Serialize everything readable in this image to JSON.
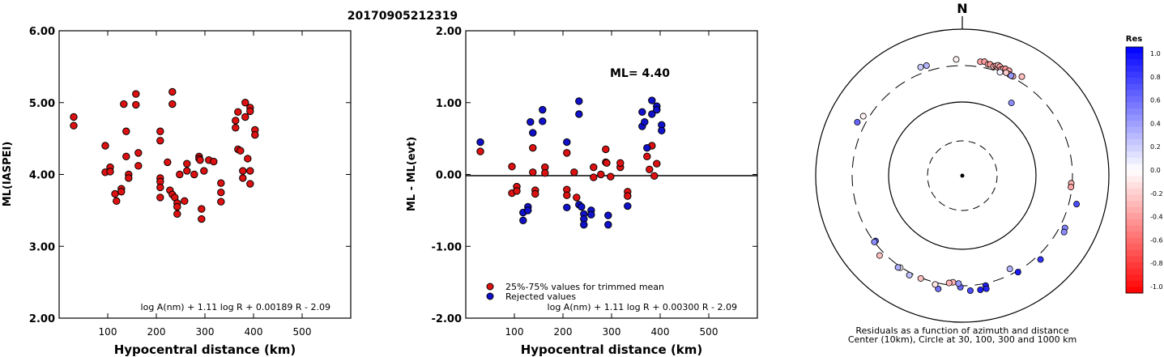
{
  "title": "20170905212319",
  "colors": {
    "trimmed": "#dd1111",
    "rejected": "#1111cc",
    "edge": "#000000"
  },
  "chart_data": [
    {
      "type": "scatter",
      "ylabel": "ML(IASPEI)",
      "xlabel": "Hypocentral distance (km)",
      "xlim": [
        0,
        600
      ],
      "ylim": [
        2.0,
        6.0
      ],
      "xticks": [
        100,
        200,
        300,
        400,
        500
      ],
      "xtick_labels": [
        "100",
        "200",
        "300",
        "400",
        "500"
      ],
      "yticks": [
        2.0,
        3.0,
        4.0,
        5.0,
        6.0
      ],
      "ytick_labels": [
        "2.00",
        "3.00",
        "4.00",
        "5.00",
        "6.00"
      ],
      "formula": "log A(nm) + 1.11 log R + 0.00189 R - 2.09",
      "series": [
        {
          "color": "#dd1111",
          "points": [
            [
              30,
              4.8
            ],
            [
              30,
              4.68
            ],
            [
              95,
              4.4
            ],
            [
              95,
              4.03
            ],
            [
              105,
              4.1
            ],
            [
              105,
              4.04
            ],
            [
              115,
              3.73
            ],
            [
              118,
              3.63
            ],
            [
              128,
              3.8
            ],
            [
              128,
              3.76
            ],
            [
              133,
              4.98
            ],
            [
              138,
              4.6
            ],
            [
              138,
              4.25
            ],
            [
              143,
              4.0
            ],
            [
              143,
              3.95
            ],
            [
              158,
              5.12
            ],
            [
              158,
              4.97
            ],
            [
              163,
              4.3
            ],
            [
              163,
              4.12
            ],
            [
              208,
              4.6
            ],
            [
              208,
              4.47
            ],
            [
              208,
              3.95
            ],
            [
              208,
              3.9
            ],
            [
              208,
              3.82
            ],
            [
              208,
              3.68
            ],
            [
              223,
              4.17
            ],
            [
              228,
              3.78
            ],
            [
              233,
              5.15
            ],
            [
              233,
              4.98
            ],
            [
              233,
              3.72
            ],
            [
              238,
              3.68
            ],
            [
              243,
              3.6
            ],
            [
              243,
              3.55
            ],
            [
              243,
              3.45
            ],
            [
              248,
              4.0
            ],
            [
              258,
              3.63
            ],
            [
              263,
              4.15
            ],
            [
              263,
              4.05
            ],
            [
              278,
              4.0
            ],
            [
              288,
              4.25
            ],
            [
              288,
              4.22
            ],
            [
              290,
              4.2
            ],
            [
              293,
              3.52
            ],
            [
              293,
              3.38
            ],
            [
              298,
              4.05
            ],
            [
              308,
              4.2
            ],
            [
              318,
              4.18
            ],
            [
              333,
              3.88
            ],
            [
              333,
              3.75
            ],
            [
              333,
              3.62
            ],
            [
              363,
              4.75
            ],
            [
              363,
              4.65
            ],
            [
              368,
              4.87
            ],
            [
              368,
              4.35
            ],
            [
              373,
              4.33
            ],
            [
              378,
              4.05
            ],
            [
              378,
              3.95
            ],
            [
              383,
              5.0
            ],
            [
              383,
              4.8
            ],
            [
              388,
              4.22
            ],
            [
              393,
              4.93
            ],
            [
              393,
              4.88
            ],
            [
              393,
              4.05
            ],
            [
              393,
              3.87
            ],
            [
              403,
              4.62
            ],
            [
              403,
              4.55
            ]
          ]
        }
      ]
    },
    {
      "type": "scatter",
      "ylabel": "ML - ML(evt)",
      "xlabel": "Hypocentral distance (km)",
      "xlim": [
        0,
        600
      ],
      "ylim": [
        -2.0,
        2.0
      ],
      "xticks": [
        100,
        200,
        300,
        400,
        500
      ],
      "xtick_labels": [
        "100",
        "200",
        "300",
        "400",
        "500"
      ],
      "yticks": [
        -2.0,
        -1.0,
        0.0,
        1.0,
        2.0
      ],
      "ytick_labels": [
        "-2.00",
        "-1.00",
        "0.00",
        "1.00",
        "2.00"
      ],
      "annotation": "ML= 4.40",
      "formula": "log A(nm) + 1.11 log R + 0.00300 R - 2.09",
      "legend": [
        {
          "label": "25%-75% values for trimmed mean",
          "color": "#dd1111"
        },
        {
          "label": "Rejected values",
          "color": "#1111cc"
        }
      ],
      "series": [
        {
          "name": "25%-75% values for trimmed mean",
          "color": "#dd1111",
          "points": [
            [
              30,
              0.32
            ],
            [
              95,
              0.11
            ],
            [
              95,
              -0.26
            ],
            [
              105,
              -0.17
            ],
            [
              105,
              -0.23
            ],
            [
              138,
              0.37
            ],
            [
              138,
              0.03
            ],
            [
              143,
              -0.22
            ],
            [
              143,
              -0.27
            ],
            [
              163,
              0.1
            ],
            [
              163,
              0.02
            ],
            [
              208,
              0.3
            ],
            [
              208,
              -0.21
            ],
            [
              208,
              -0.29
            ],
            [
              223,
              0.03
            ],
            [
              228,
              -0.32
            ],
            [
              263,
              0.1
            ],
            [
              263,
              -0.04
            ],
            [
              278,
              0.0
            ],
            [
              288,
              0.35
            ],
            [
              288,
              0.17
            ],
            [
              290,
              0.16
            ],
            [
              298,
              -0.03
            ],
            [
              318,
              0.1
            ],
            [
              318,
              0.16
            ],
            [
              333,
              -0.24
            ],
            [
              333,
              -0.3
            ],
            [
              373,
              0.25
            ],
            [
              378,
              0.07
            ],
            [
              388,
              -0.02
            ],
            [
              393,
              0.15
            ],
            [
              383,
              0.4
            ]
          ]
        },
        {
          "name": "Rejected values",
          "color": "#1111cc",
          "points": [
            [
              30,
              0.45
            ],
            [
              118,
              -0.53
            ],
            [
              118,
              -0.64
            ],
            [
              128,
              -0.45
            ],
            [
              128,
              -0.5
            ],
            [
              133,
              0.73
            ],
            [
              138,
              0.58
            ],
            [
              158,
              0.9
            ],
            [
              158,
              0.74
            ],
            [
              208,
              0.45
            ],
            [
              208,
              -0.46
            ],
            [
              233,
              1.02
            ],
            [
              233,
              0.84
            ],
            [
              233,
              -0.42
            ],
            [
              238,
              -0.45
            ],
            [
              243,
              -0.55
            ],
            [
              243,
              -0.62
            ],
            [
              243,
              -0.7
            ],
            [
              258,
              -0.5
            ],
            [
              258,
              -0.56
            ],
            [
              293,
              -0.57
            ],
            [
              293,
              -0.7
            ],
            [
              333,
              -0.44
            ],
            [
              363,
              0.87
            ],
            [
              363,
              0.67
            ],
            [
              368,
              0.73
            ],
            [
              373,
              0.37
            ],
            [
              383,
              1.03
            ],
            [
              383,
              0.84
            ],
            [
              393,
              0.95
            ],
            [
              393,
              0.9
            ],
            [
              403,
              0.69
            ],
            [
              403,
              0.61
            ]
          ]
        }
      ]
    },
    {
      "type": "scatter",
      "subtype": "polar",
      "north_label": "N",
      "caption_line1": "Residuals as a function of azimuth and distance",
      "caption_line2": "Center (10km), Circle at 30, 100, 300 and 1000 km",
      "colorbar": {
        "title": "Res",
        "range": [
          -1.0,
          1.0
        ],
        "labels": [
          "1.0",
          "0.8",
          "0.6",
          "0.4",
          "0.2",
          "0.0",
          "-0.2",
          "-0.4",
          "-0.6",
          "-0.8",
          "-1.0"
        ]
      },
      "points_azimuth_distance_residual": [
        [
          9,
          376,
          -0.35
        ],
        [
          11,
          385,
          -0.38
        ],
        [
          13,
          362,
          -0.32
        ],
        [
          14,
          368,
          -0.4
        ],
        [
          16,
          355,
          -0.28
        ],
        [
          17,
          369,
          -0.45
        ],
        [
          18,
          360,
          -0.3
        ],
        [
          18,
          384,
          -0.22
        ],
        [
          19,
          375,
          -0.37
        ],
        [
          20,
          348,
          -0.4
        ],
        [
          21,
          363,
          -0.33
        ],
        [
          22,
          374,
          -0.42
        ],
        [
          24,
          370,
          -0.36
        ],
        [
          25,
          334,
          -0.35
        ],
        [
          27,
          333,
          -0.25
        ],
        [
          26,
          330,
          0.4
        ],
        [
          23,
          337,
          -0.2
        ],
        [
          31,
          378,
          -0.26
        ],
        [
          20,
          318,
          0.05
        ],
        [
          -3,
          388,
          -0.05
        ],
        [
          -18,
          380,
          0.3
        ],
        [
          -21,
          386,
          0.2
        ],
        [
          -59,
          377,
          -0.05
        ],
        [
          -63,
          405,
          0.6
        ],
        [
          34,
          158,
          0.45
        ],
        [
          94,
          309,
          -0.3
        ],
        [
          96,
          309,
          -0.35
        ],
        [
          104,
          404,
          0.7
        ],
        [
          117,
          373,
          0.48
        ],
        [
          119,
          387,
          0.45
        ],
        [
          137,
          367,
          0.8
        ],
        [
          150,
          331,
          0.9
        ],
        [
          153,
          268,
          0.3
        ],
        [
          168,
          342,
          0.85
        ],
        [
          168,
          378,
          0.85
        ],
        [
          171,
          378,
          0.88
        ],
        [
          176,
          374,
          0.7
        ],
        [
          181,
          333,
          0.6
        ],
        [
          182,
          297,
          0.4
        ],
        [
          185,
          289,
          -0.3
        ],
        [
          187,
          299,
          -0.3
        ],
        [
          192,
          380,
          0.55
        ],
        [
          194,
          339,
          -0.1
        ],
        [
          202,
          326,
          -0.25
        ],
        [
          208,
          345,
          0.25
        ],
        [
          214,
          327,
          0.0
        ],
        [
          215,
          338,
          0.32
        ],
        [
          226,
          370,
          -0.25
        ],
        [
          233,
          303,
          0.65
        ],
        [
          233,
          318,
          0.45
        ]
      ]
    }
  ]
}
